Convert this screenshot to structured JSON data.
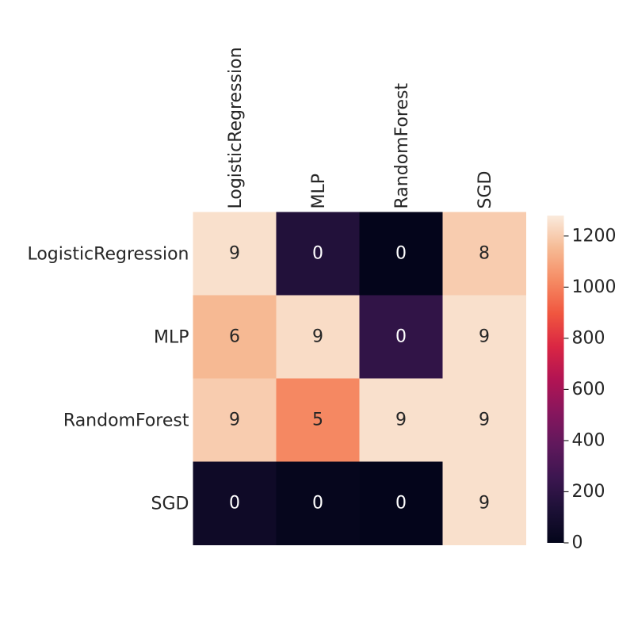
{
  "chart_data": {
    "type": "heatmap",
    "title": "",
    "xlabel": "",
    "ylabel": "",
    "x_categories": [
      "LogisticRegression",
      "MLP",
      "RandomForest",
      "SGD"
    ],
    "y_categories": [
      "LogisticRegression",
      "MLP",
      "RandomForest",
      "SGD"
    ],
    "values": [
      [
        1250,
        150,
        5,
        1200
      ],
      [
        1150,
        1240,
        210,
        1250
      ],
      [
        1200,
        1020,
        1250,
        1250
      ],
      [
        60,
        15,
        5,
        1250
      ]
    ],
    "annotations": [
      [
        "9",
        "0",
        "0",
        "8"
      ],
      [
        "6",
        "9",
        "0",
        "9"
      ],
      [
        "9",
        "5",
        "9",
        "9"
      ],
      [
        "0",
        "0",
        "0",
        "9"
      ]
    ],
    "colorbar": {
      "min": 0,
      "max": 1280,
      "ticks": [
        0,
        200,
        400,
        600,
        800,
        1000,
        1200
      ],
      "colormap": "rocket"
    }
  }
}
